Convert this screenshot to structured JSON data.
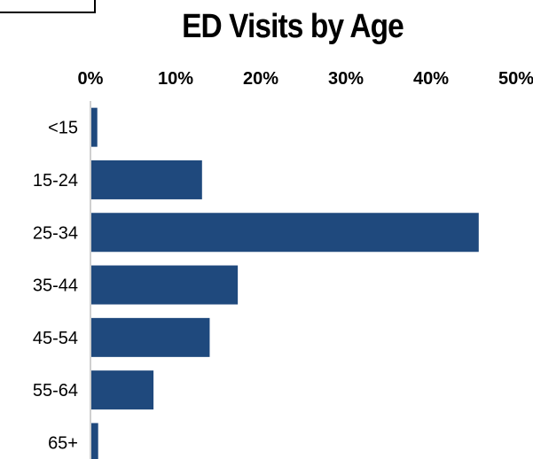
{
  "chart_data": {
    "type": "bar",
    "orientation": "horizontal",
    "title": "ED Visits by Age",
    "xlabel": "",
    "ylabel": "",
    "categories": [
      "<15",
      "15-24",
      "25-34",
      "35-44",
      "45-54",
      "55-64",
      "65+"
    ],
    "values": [
      0.7,
      13.0,
      45.5,
      17.2,
      13.9,
      7.3,
      0.8
    ],
    "xlim": [
      0,
      50
    ],
    "x_ticks": [
      "0%",
      "10%",
      "20%",
      "30%",
      "40%",
      "50%"
    ],
    "x_axis_position": "top",
    "bar_color": "#1F497D",
    "grid": false,
    "legend": "none"
  }
}
